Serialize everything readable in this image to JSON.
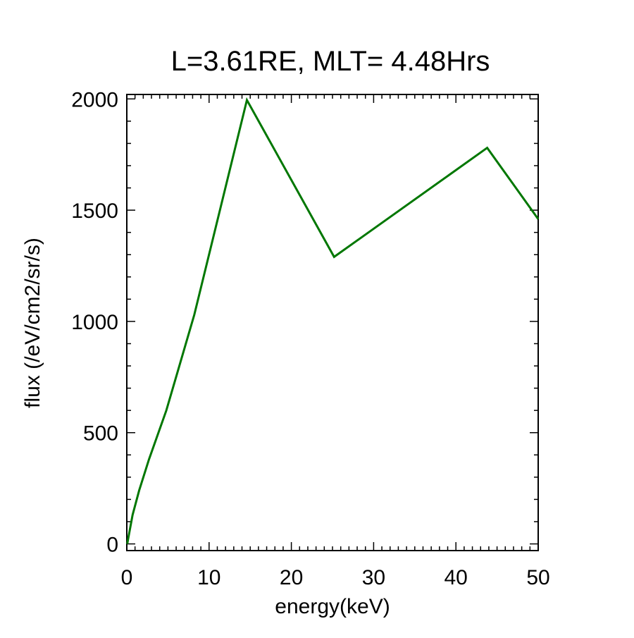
{
  "chart_data": {
    "type": "line",
    "title": "L=3.61RE, MLT= 4.48Hrs",
    "xlabel": "energy(keV)",
    "ylabel": "flux (/eV/cm2/sr/s)",
    "xlim": [
      0,
      50
    ],
    "ylim": [
      -30,
      2020
    ],
    "x_ticks": [
      0,
      10,
      20,
      30,
      40,
      50
    ],
    "y_ticks": [
      0,
      500,
      1000,
      1500,
      2000
    ],
    "x_tick_labels": [
      "0",
      "10",
      "20",
      "30",
      "40",
      "50"
    ],
    "y_tick_labels": [
      "0",
      "500",
      "1000",
      "1500",
      "2000"
    ],
    "x_minor_step": 1,
    "y_minor_step": 100,
    "grid": false,
    "legend": "none",
    "series": [
      {
        "color": "#007700",
        "x": [
          0.05,
          0.7,
          1.5,
          2.7,
          4.8,
          8.2,
          14.6,
          25.2,
          43.8,
          50.0
        ],
        "y": [
          0,
          130,
          240,
          380,
          600,
          1030,
          1995,
          1290,
          1780,
          1460
        ]
      }
    ]
  }
}
